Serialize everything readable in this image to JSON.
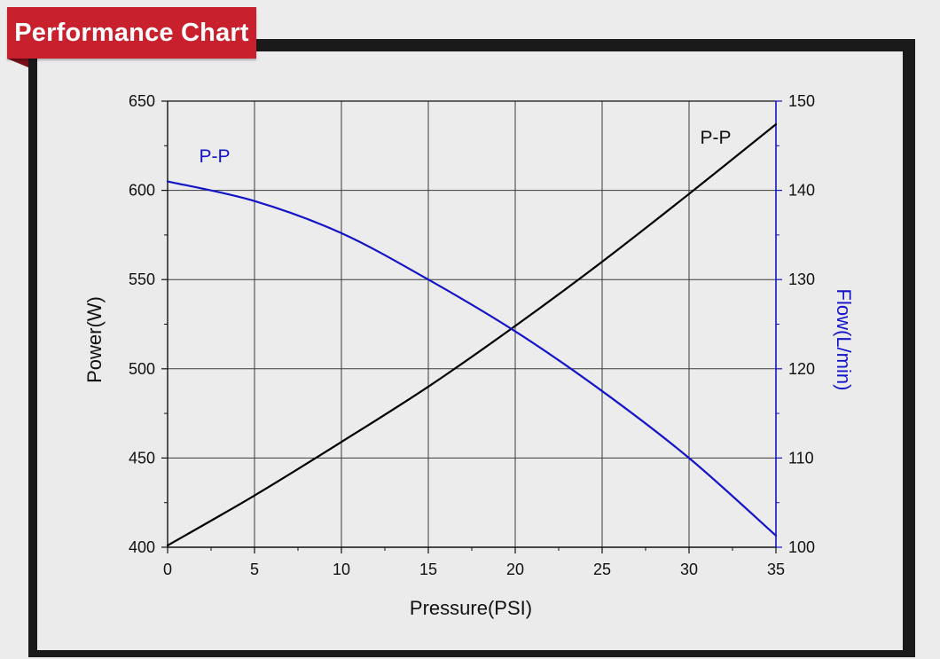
{
  "banner": {
    "title": "Performance Chart"
  },
  "colors": {
    "banner": "#c8202d",
    "frame": "#1a1a1a",
    "panel": "#ebebeb",
    "left_series": "#000000",
    "right_series": "#1414c8",
    "grid": "#222222"
  },
  "chart_data": {
    "type": "line",
    "title": "",
    "xlabel": "Pressure(PSI)",
    "ylabel": "Power(W)",
    "y2label": "Flow(L/min)",
    "xlim": [
      0,
      35
    ],
    "ylim": [
      400,
      650
    ],
    "y2lim": [
      100,
      150
    ],
    "x_ticks": [
      0,
      5,
      10,
      15,
      20,
      25,
      30,
      35
    ],
    "y_ticks": [
      400,
      450,
      500,
      550,
      600,
      650
    ],
    "y2_ticks": [
      100,
      110,
      120,
      130,
      140,
      150
    ],
    "grid": true,
    "series": [
      {
        "name": "P-P",
        "axis": "left",
        "color": "#000000",
        "x": [
          0,
          5,
          10,
          15,
          20,
          25,
          30,
          35
        ],
        "values": [
          401,
          429,
          459,
          490,
          524,
          560,
          598,
          637
        ]
      },
      {
        "name": "P-P",
        "axis": "right",
        "color": "#1414c8",
        "x": [
          0,
          5,
          10,
          15,
          20,
          25,
          30,
          35
        ],
        "values": [
          141,
          138.8,
          135.2,
          130,
          124.2,
          117.5,
          110,
          101.3
        ]
      }
    ]
  }
}
